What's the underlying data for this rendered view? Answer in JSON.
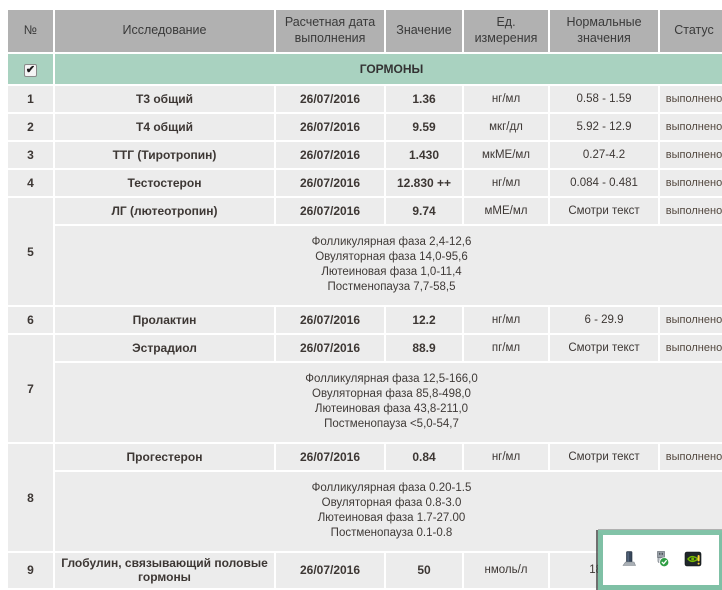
{
  "colors": {
    "header_bg": "#b1b1b1",
    "group_bg": "#a9d2c0",
    "row_bg": "#ececec",
    "popup_border": "#7fc0a5"
  },
  "table": {
    "columns": [
      "№",
      "Исследование",
      "Расчетная дата выполнения",
      "Значение",
      "Ед. измерения",
      "Нормальные значения",
      "Статус"
    ],
    "group": {
      "label": "ГОРМОНЫ",
      "checked": true
    },
    "rows": [
      {
        "num": "1",
        "name": "Т3 общий",
        "date": "26/07/2016",
        "value": "1.36",
        "unit": "нг/мл",
        "normal": "0.58 - 1.59",
        "status": "выполнено"
      },
      {
        "num": "2",
        "name": "Т4 общий",
        "date": "26/07/2016",
        "value": "9.59",
        "unit": "мкг/дл",
        "normal": "5.92 - 12.9",
        "status": "выполнено"
      },
      {
        "num": "3",
        "name": "ТТГ (Тиротропин)",
        "date": "26/07/2016",
        "value": "1.430",
        "unit": "мкМЕ/мл",
        "normal": "0.27-4.2",
        "status": "выполнено"
      },
      {
        "num": "4",
        "name": "Тестостерон",
        "date": "26/07/2016",
        "value": "12.830 ++",
        "unit": "нг/мл",
        "normal": "0.084 - 0.481",
        "status": "выполнено"
      },
      {
        "num": "5",
        "name": "ЛГ (лютеотропин)",
        "date": "26/07/2016",
        "value": "9.74",
        "unit": "мМЕ/мл",
        "normal": "Смотри текст",
        "status": "выполнено",
        "phases": [
          "Фолликулярная фаза 2,4-12,6",
          "Овуляторная фаза 14,0-95,6",
          "Лютеиновая фаза 1,0-11,4",
          "Постменопауза 7,7-58,5"
        ]
      },
      {
        "num": "6",
        "name": "Пролактин",
        "date": "26/07/2016",
        "value": "12.2",
        "unit": "нг/мл",
        "normal": "6 - 29.9",
        "status": "выполнено"
      },
      {
        "num": "7",
        "name": "Эстрадиол",
        "date": "26/07/2016",
        "value": "88.9",
        "unit": "пг/мл",
        "normal": "Смотри текст",
        "status": "выполнено",
        "phases": [
          "Фолликулярная фаза 12,5-166,0",
          "Овуляторная фаза 85,8-498,0",
          "Лютеиновая фаза 43,8-211,0",
          "Постменопауза <5,0-54,7"
        ]
      },
      {
        "num": "8",
        "name": "Прогестерон",
        "date": "26/07/2016",
        "value": "0.84",
        "unit": "нг/мл",
        "normal": "Смотри текст",
        "status": "выполнено",
        "phases": [
          "Фолликулярная фаза 0.20-1.5",
          "Овуляторная фаза 0.8-3.0",
          "Лютеиновая фаза 1.7-27.00",
          "Постменопауза 0.1-0.8"
        ]
      },
      {
        "num": "9",
        "name": "Глобулин, связывающий половые гормоны",
        "date": "26/07/2016",
        "value": "50",
        "unit": "нмоль/л",
        "normal": "18 - 1",
        "status": ""
      }
    ]
  },
  "tray_popup": {
    "icons": [
      "dock-device-icon",
      "usb-safely-remove-icon",
      "nvidia-settings-alert-icon"
    ]
  }
}
